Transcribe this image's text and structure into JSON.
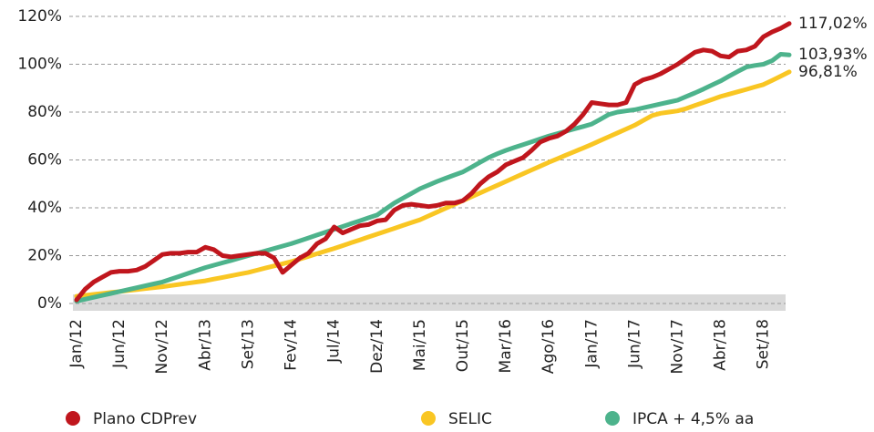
{
  "chart_data": {
    "type": "line",
    "categories": [
      "Jan/12",
      null,
      null,
      null,
      null,
      "Jun/12",
      null,
      null,
      null,
      null,
      "Nov/12",
      null,
      null,
      null,
      null,
      "Abr/13",
      null,
      null,
      null,
      null,
      "Set/13",
      null,
      null,
      null,
      null,
      "Fev/14",
      null,
      null,
      null,
      null,
      "Jul/14",
      null,
      null,
      null,
      null,
      "Dez/14",
      null,
      null,
      null,
      null,
      "Mai/15",
      null,
      null,
      null,
      null,
      "Out/15",
      null,
      null,
      null,
      null,
      "Mar/16",
      null,
      null,
      null,
      null,
      "Ago/16",
      null,
      null,
      null,
      null,
      "Jan/17",
      null,
      null,
      null,
      null,
      "Jun/17",
      null,
      null,
      null,
      null,
      "Nov/17",
      null,
      null,
      null,
      null,
      "Abr/18",
      null,
      null,
      null,
      null,
      "Set/18",
      null,
      null,
      null
    ],
    "series": [
      {
        "name": "SELIC",
        "color": "#f9c623",
        "values": [
          3,
          3.4,
          3.8,
          4.2,
          4.6,
          5,
          5.4,
          5.8,
          6.2,
          6.6,
          7,
          7.5,
          8,
          8.5,
          9,
          9.5,
          10.2,
          10.9,
          11.6,
          12.3,
          13,
          13.9,
          14.8,
          15.7,
          16.6,
          17.5,
          18.6,
          19.7,
          20.8,
          21.9,
          23,
          24.2,
          25.4,
          26.6,
          27.8,
          29,
          30.2,
          31.4,
          32.6,
          33.8,
          35,
          36.6,
          38.2,
          39.8,
          41.4,
          43,
          44.6,
          46.2,
          47.8,
          49.4,
          51,
          52.6,
          54.2,
          55.8,
          57.4,
          59,
          60.5,
          62,
          63.5,
          65,
          66.5,
          68.1,
          69.7,
          71.3,
          72.9,
          74.5,
          76.5,
          78.5,
          79.5,
          80,
          80.5,
          81.5,
          82.8,
          84,
          85.2,
          86.5,
          87.5,
          88.5,
          89.5,
          90.5,
          91.5,
          93.2,
          95,
          96.81
        ],
        "value_labels": [
          null,
          null,
          null,
          null,
          null,
          null,
          null,
          null,
          null,
          null,
          null,
          null,
          null,
          null,
          null,
          null,
          null,
          null,
          null,
          null,
          null,
          null,
          null,
          null,
          null,
          null,
          null,
          null,
          null,
          null,
          null,
          null,
          null,
          null,
          null,
          null,
          null,
          null,
          null,
          null,
          null,
          null,
          null,
          null,
          null,
          null,
          null,
          null,
          null,
          null,
          null,
          null,
          null,
          null,
          null,
          null,
          null,
          null,
          null,
          null,
          null,
          null,
          null,
          null,
          null,
          null,
          null,
          null,
          null,
          null,
          null,
          null,
          null,
          null,
          null,
          null,
          null,
          null,
          null,
          null,
          null,
          null,
          null,
          "96,81%"
        ]
      },
      {
        "name": "IPCA + 4,5% aa",
        "color": "#4db38c",
        "values": [
          1,
          1.8,
          2.6,
          3.4,
          4.2,
          5,
          5.8,
          6.6,
          7.4,
          8.2,
          9,
          10.2,
          11.4,
          12.6,
          13.8,
          15,
          16,
          17,
          18,
          19,
          20,
          21,
          22,
          23,
          24,
          25,
          26.2,
          27.4,
          28.6,
          29.8,
          31,
          32.2,
          33.4,
          34.6,
          35.8,
          37,
          39.5,
          42,
          44,
          46,
          48,
          49.5,
          51,
          52.4,
          53.7,
          55,
          57,
          59,
          61,
          62.6,
          64,
          65.2,
          66.4,
          67.6,
          68.8,
          70,
          71,
          72,
          73,
          74,
          75,
          77,
          79,
          80,
          80.5,
          81,
          81.8,
          82.6,
          83.4,
          84.2,
          85,
          86.5,
          88,
          89.6,
          91.3,
          93,
          95,
          97,
          98.8,
          99.5,
          100,
          101.5,
          104.2,
          103.93
        ],
        "value_labels": [
          null,
          null,
          null,
          null,
          null,
          null,
          null,
          null,
          null,
          null,
          null,
          null,
          null,
          null,
          null,
          null,
          null,
          null,
          null,
          null,
          null,
          null,
          null,
          null,
          null,
          null,
          null,
          null,
          null,
          null,
          null,
          null,
          null,
          null,
          null,
          null,
          null,
          null,
          null,
          null,
          null,
          null,
          null,
          null,
          null,
          null,
          null,
          null,
          null,
          null,
          null,
          null,
          null,
          null,
          null,
          null,
          null,
          null,
          null,
          null,
          null,
          null,
          null,
          null,
          null,
          null,
          null,
          null,
          null,
          null,
          null,
          null,
          null,
          null,
          null,
          null,
          null,
          null,
          null,
          null,
          null,
          null,
          null,
          "103,93%"
        ]
      },
      {
        "name": "Plano CDPrev",
        "color": "#c0161d",
        "values": [
          1.5,
          6,
          9,
          11,
          13,
          13.5,
          13.5,
          14,
          15.5,
          18,
          20.5,
          21,
          21,
          21.5,
          21.5,
          23.5,
          22.5,
          20,
          19.5,
          20,
          20.5,
          21,
          21,
          19,
          13,
          16,
          19,
          21,
          25,
          27,
          32,
          29.5,
          31,
          32.5,
          33,
          34.5,
          35,
          39,
          41,
          41.5,
          41,
          40.5,
          41,
          42,
          42,
          43,
          46,
          50,
          53,
          55,
          58,
          59.5,
          61,
          64,
          67.5,
          69,
          70,
          72,
          75,
          79,
          84,
          83.5,
          83,
          83,
          84,
          91.5,
          93.5,
          94.5,
          96,
          98,
          100,
          102.5,
          105,
          106,
          105.5,
          103.5,
          103,
          105.5,
          106,
          107.5,
          111.5,
          113.5,
          115,
          117.02
        ],
        "value_labels": [
          null,
          null,
          null,
          null,
          null,
          null,
          null,
          null,
          null,
          null,
          null,
          null,
          null,
          null,
          null,
          null,
          null,
          null,
          null,
          null,
          null,
          null,
          null,
          null,
          null,
          null,
          null,
          null,
          null,
          null,
          null,
          null,
          null,
          null,
          null,
          null,
          null,
          null,
          null,
          null,
          null,
          null,
          null,
          null,
          null,
          null,
          null,
          null,
          null,
          null,
          null,
          null,
          null,
          null,
          null,
          null,
          null,
          null,
          null,
          null,
          null,
          null,
          null,
          null,
          null,
          null,
          null,
          null,
          null,
          null,
          null,
          null,
          null,
          null,
          null,
          null,
          null,
          null,
          null,
          null,
          null,
          null,
          null,
          "117,02%"
        ]
      }
    ],
    "ylim": [
      0,
      120
    ],
    "yticks": [
      {
        "value": 0,
        "label": "0%"
      },
      {
        "value": 20,
        "label": "20%"
      },
      {
        "value": 40,
        "label": "40%"
      },
      {
        "value": 60,
        "label": "60%"
      },
      {
        "value": 80,
        "label": "80%"
      },
      {
        "value": 100,
        "label": "100%"
      },
      {
        "value": 120,
        "label": "120%"
      }
    ],
    "grid": true
  }
}
